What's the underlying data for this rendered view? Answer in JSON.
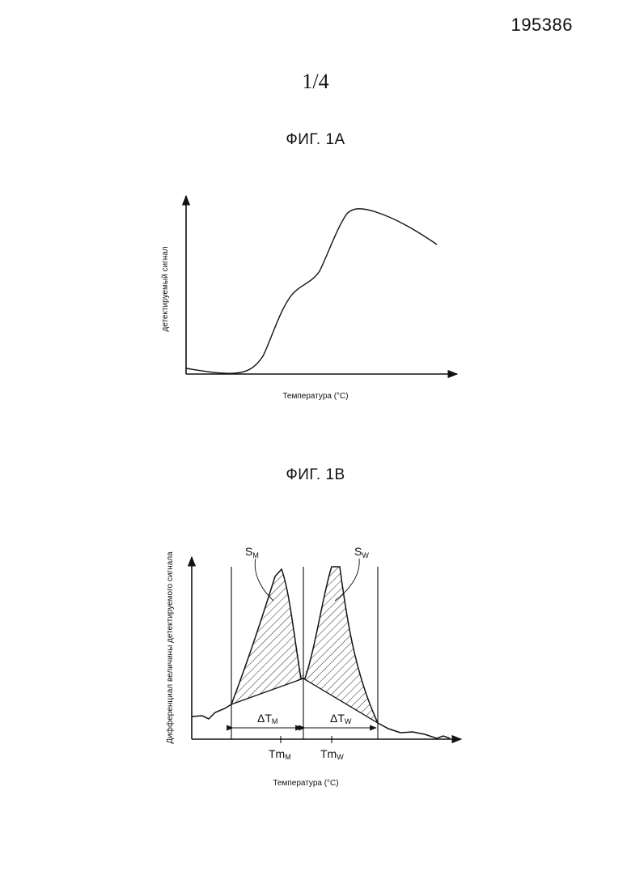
{
  "header": {
    "patent_number": "195386",
    "sheet": "1/4"
  },
  "fig1a": {
    "title": "ФИГ. 1А",
    "xlabel": "Температура (°C)",
    "ylabel": "детектируемый сигнал"
  },
  "fig1b": {
    "title": "ФИГ. 1В",
    "xlabel": "Температура (°C)",
    "ylabel": "Дифференциал величины детектируемого сигнала",
    "labels": {
      "sm_main": "S",
      "sm_sub": "M",
      "sw_main": "S",
      "sw_sub": "W",
      "dtm_main": "ΔT",
      "dtm_sub": "M",
      "dtw_main": "ΔT",
      "dtw_sub": "W",
      "tmm_main": "Tm",
      "tmm_sub": "M",
      "tmw_main": "Tm",
      "tmw_sub": "W"
    }
  },
  "chart_data": [
    {
      "type": "line",
      "title": "ФИГ. 1А",
      "xlabel": "Температура (°C)",
      "ylabel": "детектируемый сигнал",
      "note": "qualitative curve, unitless axes",
      "x": [
        0,
        0.1,
        0.18,
        0.22,
        0.28,
        0.34,
        0.4,
        0.44,
        0.5,
        0.56,
        0.62,
        0.64,
        0.7,
        0.8,
        0.9,
        0.95
      ],
      "y": [
        0.02,
        0.0,
        0.0,
        0.02,
        0.1,
        0.3,
        0.45,
        0.5,
        0.62,
        0.85,
        0.92,
        0.92,
        0.9,
        0.83,
        0.74,
        0.7
      ]
    },
    {
      "type": "area",
      "title": "ФИГ. 1В",
      "xlabel": "Температура (°C)",
      "ylabel": "Дифференциал величины детектируемого сигнала",
      "note": "qualitative derivative curve with two hatched peak areas S_M and S_W",
      "series": [
        {
          "name": "S_M",
          "peak_label": "Tm_M",
          "width_label": "ΔT_M"
        },
        {
          "name": "S_W",
          "peak_label": "Tm_W",
          "width_label": "ΔT_W"
        }
      ]
    }
  ]
}
